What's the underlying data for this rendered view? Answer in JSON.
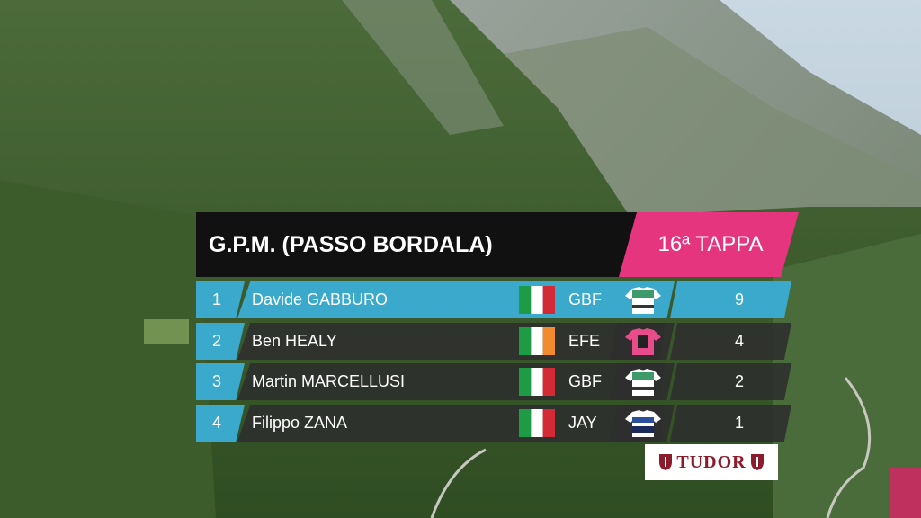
{
  "header": {
    "title": "G.P.M. (PASSO BORDALA)",
    "stage": "16ª TAPPA"
  },
  "rows": [
    {
      "rank": 1,
      "name": "Davide GABBURO",
      "team": "GBF",
      "points": 9
    },
    {
      "rank": 2,
      "name": "Ben HEALY",
      "team": "EFE",
      "points": 4
    },
    {
      "rank": 3,
      "name": "Martin MARCELLUSI",
      "team": "GBF",
      "points": 2
    },
    {
      "rank": 4,
      "name": "Filippo ZANA",
      "team": "JAY",
      "points": 1
    }
  ],
  "sponsor": "TUDOR"
}
